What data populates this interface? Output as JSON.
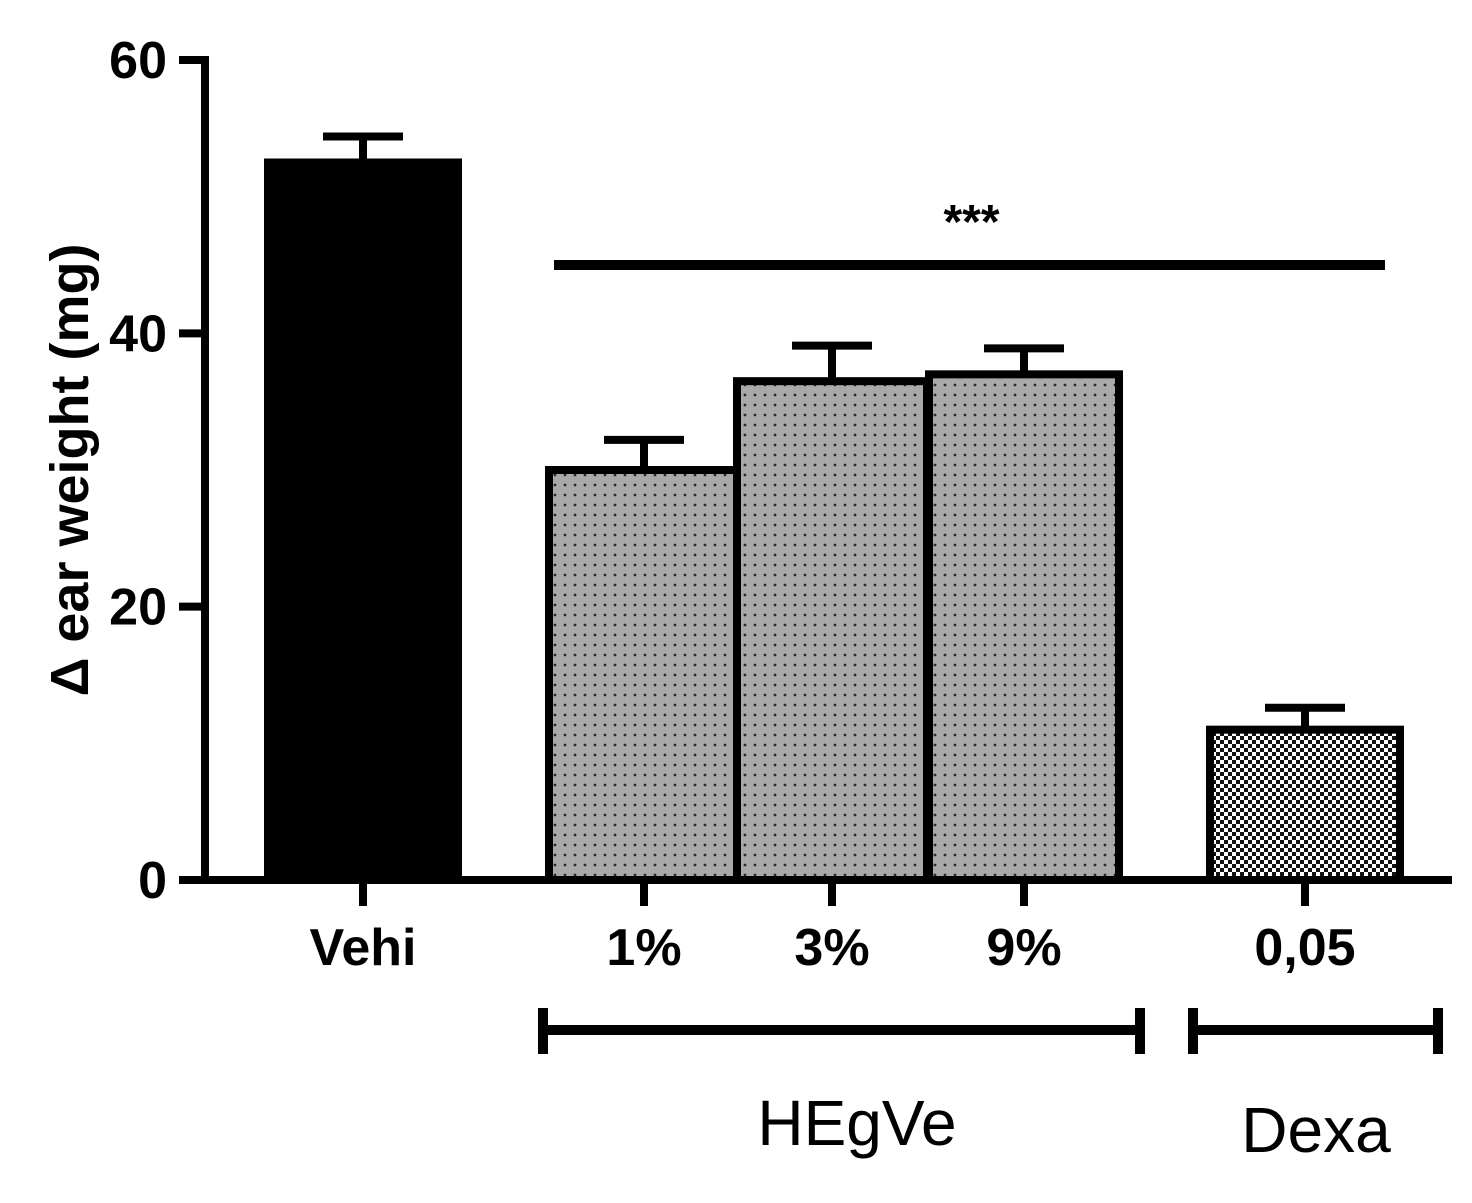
{
  "chart_data": {
    "type": "bar",
    "title": "",
    "ylabel": "Δ ear weight (mg)",
    "xlabel": "",
    "ylim": [
      0,
      60
    ],
    "yticks": [
      0,
      20,
      40,
      60
    ],
    "categories": [
      "Vehi",
      "1%",
      "3%",
      "9%",
      "0,05"
    ],
    "values": [
      52.5,
      30,
      36.5,
      37,
      11
    ],
    "errors": [
      1.9,
      2.2,
      2.6,
      1.9,
      1.6
    ],
    "fills": [
      "solid-black",
      "dotted-gray",
      "dotted-gray",
      "dotted-gray",
      "checkered"
    ],
    "groups": [
      {
        "label": "HEgVe",
        "categories": [
          "1%",
          "3%",
          "9%"
        ]
      },
      {
        "label": "Dexa",
        "categories": [
          "0,05"
        ]
      }
    ],
    "significance": {
      "label": "***",
      "from": "1%",
      "to": "0,05"
    },
    "grid": false,
    "legend": "none"
  }
}
